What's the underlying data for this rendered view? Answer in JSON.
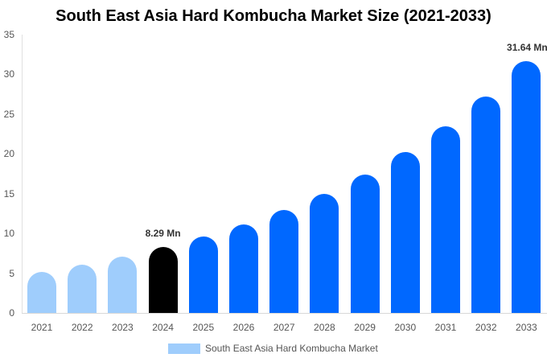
{
  "chart_data": {
    "type": "bar",
    "title": "South East Asia Hard Kombucha Market Size (2021-2033)",
    "xlabel": "",
    "ylabel": "",
    "ylim": [
      0,
      35
    ],
    "yticks": [
      0,
      5,
      10,
      15,
      20,
      25,
      30,
      35
    ],
    "grid": false,
    "legend_position": "bottom",
    "categories": [
      "2021",
      "2022",
      "2023",
      "2024",
      "2025",
      "2026",
      "2027",
      "2028",
      "2029",
      "2030",
      "2031",
      "2032",
      "2033"
    ],
    "series": [
      {
        "name": "South East Asia Hard Kombucha Market",
        "values": [
          5.2,
          6.1,
          7.1,
          8.29,
          9.6,
          11.1,
          12.9,
          15.0,
          17.4,
          20.2,
          23.5,
          27.2,
          31.64
        ],
        "colors": [
          "#9fcdfc",
          "#9fcdfc",
          "#9fcdfc",
          "#000000",
          "#0068ff",
          "#0068ff",
          "#0068ff",
          "#0068ff",
          "#0068ff",
          "#0068ff",
          "#0068ff",
          "#0068ff",
          "#0068ff"
        ]
      }
    ],
    "annotations": [
      {
        "category": "2024",
        "text": "8.29 Mn"
      },
      {
        "category": "2033",
        "text": "31.64 Mn"
      }
    ]
  },
  "title": "South East Asia Hard Kombucha Market Size (2021-2033)",
  "yticks": [
    "0",
    "5",
    "10",
    "15",
    "20",
    "25",
    "30",
    "35"
  ],
  "xlabels": [
    "2021",
    "2022",
    "2023",
    "2024",
    "2025",
    "2026",
    "2027",
    "2028",
    "2029",
    "2030",
    "2031",
    "2032",
    "2033"
  ],
  "annotations": {
    "a2024": "8.29 Mn",
    "a2033": "31.64 Mn"
  },
  "legend": {
    "label": "South East Asia Hard Kombucha Market",
    "color": "#9fcdfc"
  }
}
